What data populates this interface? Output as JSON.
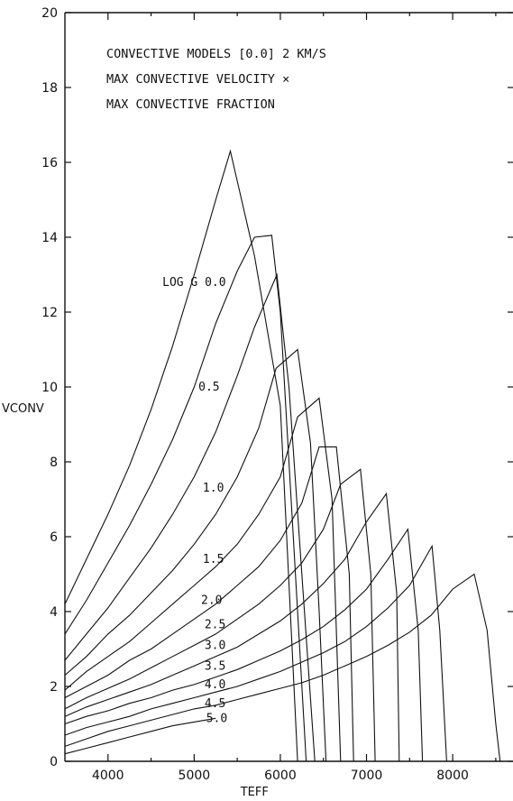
{
  "chart_data": {
    "type": "line",
    "title_lines": [
      "CONVECTIVE MODELS [0.0] 2 KM/S",
      "MAX CONVECTIVE VELOCITY ×",
      "MAX CONVECTIVE FRACTION"
    ],
    "xlabel": "TEFF",
    "ylabel": "VCONV",
    "xlim": [
      3500,
      8700
    ],
    "ylim": [
      0,
      20
    ],
    "x_ticks": [
      "4000",
      "5000",
      "6000",
      "7000",
      "8000"
    ],
    "y_ticks": [
      "0",
      "2",
      "4",
      "6",
      "8",
      "10",
      "12",
      "14",
      "16",
      "18",
      "20"
    ],
    "grid": false,
    "series": [
      {
        "name": "LOG G 0.0",
        "label_teff": 5000,
        "label_v": 12.7,
        "points": [
          [
            3500,
            4.2
          ],
          [
            3750,
            5.4
          ],
          [
            4000,
            6.6
          ],
          [
            4250,
            7.9
          ],
          [
            4500,
            9.4
          ],
          [
            4750,
            11.1
          ],
          [
            5000,
            13.0
          ],
          [
            5250,
            15.0
          ],
          [
            5420,
            16.3
          ],
          [
            5700,
            13.5
          ],
          [
            6000,
            9.5
          ],
          [
            6200,
            0
          ]
        ]
      },
      {
        "name": "0.5",
        "label_teff": 5050,
        "label_v": 9.9,
        "points": [
          [
            3500,
            3.4
          ],
          [
            3750,
            4.3
          ],
          [
            4000,
            5.3
          ],
          [
            4250,
            6.3
          ],
          [
            4500,
            7.4
          ],
          [
            4750,
            8.6
          ],
          [
            5000,
            10.0
          ],
          [
            5250,
            11.7
          ],
          [
            5500,
            13.1
          ],
          [
            5700,
            14.0
          ],
          [
            5900,
            14.05
          ],
          [
            6000,
            12.0
          ],
          [
            6150,
            6.0
          ],
          [
            6300,
            0
          ]
        ]
      },
      {
        "name": "1.0",
        "label_teff": 5100,
        "label_v": 7.2,
        "points": [
          [
            3500,
            2.7
          ],
          [
            3750,
            3.4
          ],
          [
            4000,
            4.1
          ],
          [
            4250,
            4.9
          ],
          [
            4500,
            5.7
          ],
          [
            4750,
            6.6
          ],
          [
            5000,
            7.6
          ],
          [
            5250,
            8.8
          ],
          [
            5500,
            10.3
          ],
          [
            5700,
            11.6
          ],
          [
            5960,
            13.0
          ],
          [
            6100,
            10.0
          ],
          [
            6250,
            5.0
          ],
          [
            6400,
            0
          ]
        ]
      },
      {
        "name": "1.5",
        "label_teff": 5100,
        "label_v": 5.3,
        "points": [
          [
            3500,
            2.3
          ],
          [
            3750,
            2.8
          ],
          [
            4000,
            3.4
          ],
          [
            4250,
            3.9
          ],
          [
            4500,
            4.5
          ],
          [
            4750,
            5.1
          ],
          [
            5000,
            5.8
          ],
          [
            5250,
            6.6
          ],
          [
            5500,
            7.6
          ],
          [
            5750,
            8.9
          ],
          [
            5950,
            10.5
          ],
          [
            6200,
            11.0
          ],
          [
            6350,
            8.5
          ],
          [
            6450,
            4.0
          ],
          [
            6530,
            0
          ]
        ]
      },
      {
        "name": "2.0",
        "label_teff": 5080,
        "label_v": 4.2,
        "points": [
          [
            3500,
            1.9
          ],
          [
            3750,
            2.4
          ],
          [
            4000,
            2.8
          ],
          [
            4250,
            3.2
          ],
          [
            4500,
            3.7
          ],
          [
            4750,
            4.2
          ],
          [
            5000,
            4.7
          ],
          [
            5250,
            5.2
          ],
          [
            5500,
            5.8
          ],
          [
            5750,
            6.6
          ],
          [
            6000,
            7.6
          ],
          [
            6200,
            9.2
          ],
          [
            6450,
            9.7
          ],
          [
            6600,
            7.0
          ],
          [
            6700,
            0
          ]
        ]
      },
      {
        "name": "2.5",
        "label_teff": 5120,
        "label_v": 3.55,
        "points": [
          [
            3500,
            1.7
          ],
          [
            3750,
            2.0
          ],
          [
            4000,
            2.3
          ],
          [
            4250,
            2.7
          ],
          [
            4500,
            3.0
          ],
          [
            4750,
            3.4
          ],
          [
            5000,
            3.8
          ],
          [
            5250,
            4.2
          ],
          [
            5500,
            4.7
          ],
          [
            5750,
            5.2
          ],
          [
            6000,
            5.9
          ],
          [
            6250,
            6.9
          ],
          [
            6450,
            8.4
          ],
          [
            6650,
            8.4
          ],
          [
            6800,
            5.0
          ],
          [
            6850,
            0
          ]
        ]
      },
      {
        "name": "3.0",
        "label_teff": 5120,
        "label_v": 3.0,
        "points": [
          [
            3500,
            1.4
          ],
          [
            3750,
            1.7
          ],
          [
            4000,
            1.95
          ],
          [
            4250,
            2.2
          ],
          [
            4500,
            2.5
          ],
          [
            4750,
            2.8
          ],
          [
            5000,
            3.1
          ],
          [
            5250,
            3.4
          ],
          [
            5500,
            3.8
          ],
          [
            5750,
            4.2
          ],
          [
            6000,
            4.7
          ],
          [
            6250,
            5.3
          ],
          [
            6500,
            6.2
          ],
          [
            6700,
            7.4
          ],
          [
            6930,
            7.8
          ],
          [
            7050,
            5.0
          ],
          [
            7100,
            0
          ]
        ]
      },
      {
        "name": "3.5",
        "label_teff": 5120,
        "label_v": 2.45,
        "points": [
          [
            3500,
            1.2
          ],
          [
            3750,
            1.45
          ],
          [
            4000,
            1.65
          ],
          [
            4250,
            1.85
          ],
          [
            4500,
            2.05
          ],
          [
            4750,
            2.3
          ],
          [
            5000,
            2.55
          ],
          [
            5250,
            2.8
          ],
          [
            5500,
            3.05
          ],
          [
            5750,
            3.4
          ],
          [
            6000,
            3.75
          ],
          [
            6250,
            4.2
          ],
          [
            6500,
            4.75
          ],
          [
            6750,
            5.4
          ],
          [
            7000,
            6.4
          ],
          [
            7230,
            7.15
          ],
          [
            7350,
            4.5
          ],
          [
            7380,
            0
          ]
        ]
      },
      {
        "name": "4.0",
        "label_teff": 5120,
        "label_v": 1.95,
        "points": [
          [
            3500,
            1.0
          ],
          [
            3750,
            1.2
          ],
          [
            4000,
            1.35
          ],
          [
            4250,
            1.55
          ],
          [
            4500,
            1.7
          ],
          [
            4750,
            1.9
          ],
          [
            5000,
            2.05
          ],
          [
            5250,
            2.25
          ],
          [
            5500,
            2.45
          ],
          [
            5750,
            2.7
          ],
          [
            6000,
            2.95
          ],
          [
            6250,
            3.25
          ],
          [
            6500,
            3.6
          ],
          [
            6750,
            4.05
          ],
          [
            7000,
            4.6
          ],
          [
            7250,
            5.4
          ],
          [
            7480,
            6.2
          ],
          [
            7600,
            3.5
          ],
          [
            7650,
            0
          ]
        ]
      },
      {
        "name": "4.5",
        "label_teff": 5120,
        "label_v": 1.45,
        "points": [
          [
            3500,
            0.7
          ],
          [
            3750,
            0.9
          ],
          [
            4000,
            1.05
          ],
          [
            4250,
            1.2
          ],
          [
            4500,
            1.4
          ],
          [
            4750,
            1.55
          ],
          [
            5000,
            1.7
          ],
          [
            5250,
            1.85
          ],
          [
            5500,
            2.0
          ],
          [
            5750,
            2.2
          ],
          [
            6000,
            2.4
          ],
          [
            6250,
            2.65
          ],
          [
            6500,
            2.9
          ],
          [
            6750,
            3.2
          ],
          [
            7000,
            3.6
          ],
          [
            7250,
            4.1
          ],
          [
            7500,
            4.7
          ],
          [
            7760,
            5.75
          ],
          [
            7850,
            3.5
          ],
          [
            7930,
            0
          ]
        ]
      },
      {
        "name": "5.0",
        "label_teff": 5140,
        "label_v": 1.05,
        "points": [
          [
            3500,
            0.4
          ],
          [
            3750,
            0.6
          ],
          [
            4000,
            0.8
          ],
          [
            4250,
            0.95
          ],
          [
            4500,
            1.1
          ],
          [
            4750,
            1.25
          ],
          [
            5000,
            1.4
          ],
          [
            5250,
            1.5
          ],
          [
            5500,
            1.65
          ],
          [
            5750,
            1.8
          ],
          [
            6000,
            1.95
          ],
          [
            6250,
            2.1
          ],
          [
            6500,
            2.3
          ],
          [
            6750,
            2.55
          ],
          [
            7000,
            2.8
          ],
          [
            7250,
            3.1
          ],
          [
            7500,
            3.45
          ],
          [
            7750,
            3.9
          ],
          [
            8000,
            4.6
          ],
          [
            8250,
            5.0
          ],
          [
            8400,
            3.5
          ],
          [
            8500,
            1.0
          ],
          [
            8550,
            0
          ]
        ]
      }
    ],
    "extra_lines": [
      {
        "points": [
          [
            3500,
            0.2
          ],
          [
            3750,
            0.35
          ],
          [
            4000,
            0.5
          ],
          [
            4250,
            0.65
          ],
          [
            4500,
            0.8
          ],
          [
            4750,
            0.95
          ],
          [
            5000,
            1.05
          ],
          [
            5250,
            1.15
          ]
        ]
      }
    ]
  }
}
